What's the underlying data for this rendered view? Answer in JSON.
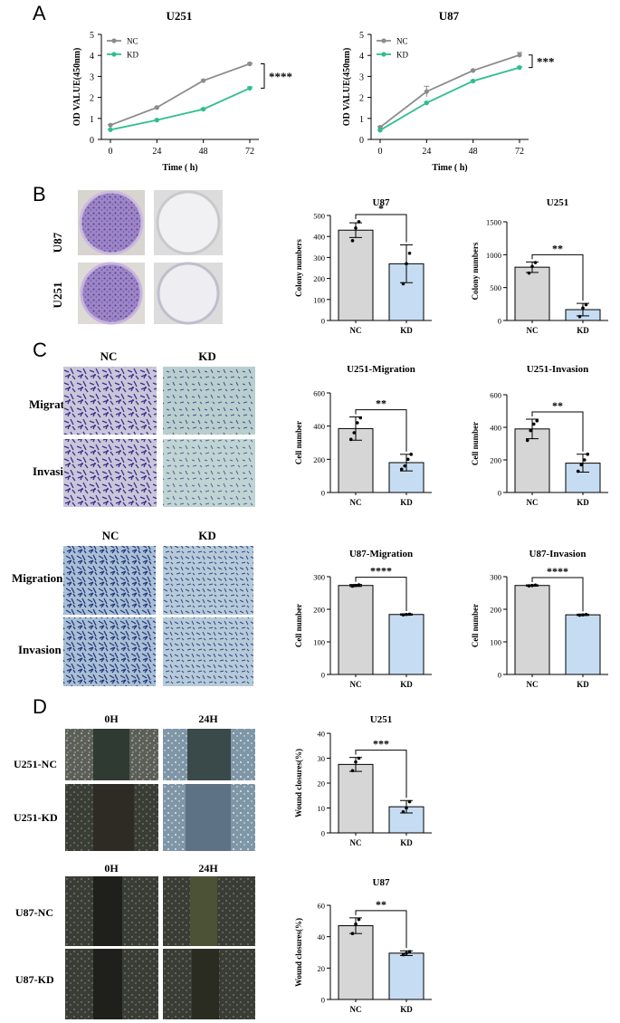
{
  "panel_labels": [
    "A",
    "B",
    "C",
    "D"
  ],
  "colors": {
    "nc_line": "#8c8c8c",
    "kd_line": "#2fbf8a",
    "bar_nc": "#d6d6d6",
    "bar_kd": "#c6dcf2",
    "stain": "#6a3f9a"
  },
  "panel_a": {
    "charts": [
      {
        "title": "U251",
        "sig": "****"
      },
      {
        "title": "U87",
        "sig": "***"
      }
    ],
    "legend": [
      "NC",
      "KD"
    ],
    "xlabel": "Time ( h)",
    "ylabel": "OD VALUE(450nm)"
  },
  "panel_b": {
    "rows": [
      "U87",
      "U251"
    ]
  },
  "panel_c": {
    "groups": [
      {
        "cols": [
          "NC",
          "KD"
        ],
        "rows": [
          "Migration",
          "Invasion"
        ]
      },
      {
        "cols": [
          "NC",
          "KD"
        ],
        "rows": [
          "Migration",
          "Invasion"
        ]
      }
    ]
  },
  "panel_d": {
    "groups": [
      {
        "cols": [
          "0H",
          "24H"
        ],
        "rows": [
          "U251-NC",
          "U251-KD"
        ]
      },
      {
        "cols": [
          "0H",
          "24H"
        ],
        "rows": [
          "U87-NC",
          "U87-KD"
        ]
      }
    ]
  },
  "chart_data": [
    {
      "id": "a_u251",
      "type": "line",
      "title": "U251",
      "xlabel": "Time ( h)",
      "ylabel": "OD VALUE(450nm)",
      "x": [
        0,
        24,
        48,
        72
      ],
      "ylim": [
        0,
        5
      ],
      "yticks": [
        0,
        1,
        2,
        3,
        4,
        5
      ],
      "sig": "****",
      "legend": "top-left",
      "series": [
        {
          "name": "NC",
          "values": [
            0.68,
            1.52,
            2.8,
            3.6
          ],
          "err": [
            0.03,
            0.03,
            0.04,
            0.04
          ]
        },
        {
          "name": "KD",
          "values": [
            0.46,
            0.92,
            1.44,
            2.44
          ],
          "err": [
            0.03,
            0.03,
            0.04,
            0.06
          ]
        }
      ]
    },
    {
      "id": "a_u87",
      "type": "line",
      "title": "U87",
      "xlabel": "Time ( h)",
      "ylabel": "OD VALUE(450nm)",
      "x": [
        0,
        24,
        48,
        72
      ],
      "ylim": [
        0,
        5
      ],
      "yticks": [
        0,
        1,
        2,
        3,
        4,
        5
      ],
      "sig": "***",
      "legend": "top-left",
      "series": [
        {
          "name": "NC",
          "values": [
            0.58,
            2.28,
            3.28,
            4.02
          ],
          "err": [
            0.04,
            0.25,
            0.04,
            0.12
          ]
        },
        {
          "name": "KD",
          "values": [
            0.44,
            1.74,
            2.78,
            3.42
          ],
          "err": [
            0.03,
            0.06,
            0.04,
            0.05
          ]
        }
      ]
    },
    {
      "id": "b_u87",
      "type": "bar",
      "title": "U87",
      "ylabel": "Colony numbers",
      "categories": [
        "NC",
        "KD"
      ],
      "values": [
        430,
        270
      ],
      "err": [
        35,
        90
      ],
      "points": [
        [
          380,
          440,
          470
        ],
        [
          175,
          270,
          320
        ]
      ],
      "ylim": [
        0,
        500
      ],
      "yticks": [
        0,
        100,
        200,
        300,
        400,
        500
      ],
      "sig": "*"
    },
    {
      "id": "b_u251",
      "type": "bar",
      "title": "U251",
      "ylabel": "Colony numbers",
      "categories": [
        "NC",
        "KD"
      ],
      "values": [
        810,
        165
      ],
      "err": [
        80,
        95
      ],
      "points": [
        [
          720,
          820,
          880
        ],
        [
          60,
          190,
          240
        ]
      ],
      "ylim": [
        0,
        1500
      ],
      "yticks": [
        0,
        500,
        1000,
        1500
      ],
      "sig": "**"
    },
    {
      "id": "c_u251_mig",
      "type": "bar",
      "title": "U251-Migration",
      "ylabel": "Cell number",
      "categories": [
        "NC",
        "KD"
      ],
      "values": [
        385,
        180
      ],
      "err": [
        70,
        50
      ],
      "points": [
        [
          320,
          360,
          420,
          450
        ],
        [
          140,
          160,
          200,
          230
        ]
      ],
      "ylim": [
        0,
        600
      ],
      "yticks": [
        0,
        200,
        400,
        600
      ],
      "sig": "**"
    },
    {
      "id": "c_u251_inv",
      "type": "bar",
      "title": "U251-Invasion",
      "ylabel": "Cell number",
      "categories": [
        "NC",
        "KD"
      ],
      "values": [
        390,
        180
      ],
      "err": [
        60,
        55
      ],
      "points": [
        [
          320,
          380,
          420,
          440
        ],
        [
          130,
          170,
          200,
          235
        ]
      ],
      "ylim": [
        0,
        600
      ],
      "yticks": [
        0,
        200,
        400,
        600
      ],
      "sig": "**"
    },
    {
      "id": "c_u87_mig",
      "type": "bar",
      "title": "U87-Migration",
      "ylabel": "Cell number",
      "categories": [
        "NC",
        "KD"
      ],
      "values": [
        273,
        184
      ],
      "err": [
        3,
        2
      ],
      "points": [
        [
          271,
          273,
          275
        ],
        [
          183,
          184,
          185
        ]
      ],
      "ylim": [
        0,
        300
      ],
      "yticks": [
        0,
        100,
        200,
        300
      ],
      "sig": "****"
    },
    {
      "id": "c_u87_inv",
      "type": "bar",
      "title": "U87-Invasion",
      "ylabel": "Cell number",
      "categories": [
        "NC",
        "KD"
      ],
      "values": [
        273,
        183
      ],
      "err": [
        2,
        2
      ],
      "points": [
        [
          272,
          273,
          274
        ],
        [
          182,
          183,
          184
        ]
      ],
      "ylim": [
        0,
        300
      ],
      "yticks": [
        0,
        100,
        200,
        300
      ],
      "sig": "****"
    },
    {
      "id": "d_u251",
      "type": "bar",
      "title": "U251",
      "ylabel": "Wound closures(%)",
      "categories": [
        "NC",
        "KD"
      ],
      "values": [
        27.5,
        10.5
      ],
      "err": [
        2.8,
        2.5
      ],
      "points": [
        [
          25,
          28.5,
          30
        ],
        [
          8.5,
          10,
          12.5
        ]
      ],
      "ylim": [
        0,
        40
      ],
      "yticks": [
        0,
        10,
        20,
        30,
        40
      ],
      "sig": "***"
    },
    {
      "id": "d_u87",
      "type": "bar",
      "title": "U87",
      "ylabel": "Wound closures(%)",
      "categories": [
        "NC",
        "KD"
      ],
      "values": [
        47,
        29.5
      ],
      "err": [
        5,
        1.5
      ],
      "points": [
        [
          42,
          48,
          51
        ],
        [
          28.5,
          29.5,
          30.5
        ]
      ],
      "ylim": [
        0,
        60
      ],
      "yticks": [
        0,
        20,
        40,
        60
      ],
      "sig": "**"
    }
  ]
}
